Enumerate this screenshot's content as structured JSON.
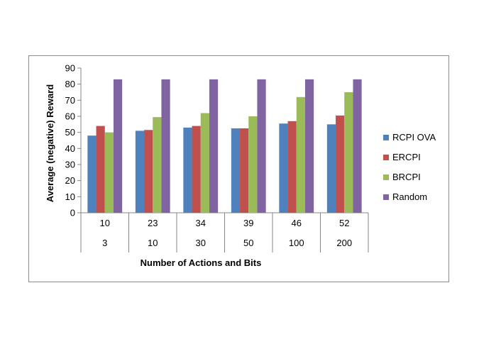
{
  "chart_data": {
    "type": "bar",
    "title": "",
    "xlabel": "Number of Actions and Bits",
    "ylabel": "Average (negative) Reward",
    "ylim": [
      0,
      90
    ],
    "yticks": [
      0,
      10,
      20,
      30,
      40,
      50,
      60,
      70,
      80,
      90
    ],
    "grid": false,
    "legend_position": "right",
    "categories": [
      {
        "actions": "10",
        "bits": "3"
      },
      {
        "actions": "23",
        "bits": "10"
      },
      {
        "actions": "34",
        "bits": "30"
      },
      {
        "actions": "39",
        "bits": "50"
      },
      {
        "actions": "46",
        "bits": "100"
      },
      {
        "actions": "52",
        "bits": "200"
      }
    ],
    "series": [
      {
        "name": "RCPI OVA",
        "color": "#4f81bd",
        "values": [
          48,
          51,
          53,
          52.5,
          55.5,
          55
        ]
      },
      {
        "name": "ERCPI",
        "color": "#c0504d",
        "values": [
          54,
          51.5,
          54,
          52.5,
          57,
          60.5
        ]
      },
      {
        "name": "BRCPI",
        "color": "#9bbb59",
        "values": [
          50,
          59.5,
          62,
          60,
          72,
          75
        ]
      },
      {
        "name": "Random",
        "color": "#8064a2",
        "values": [
          83,
          83,
          83,
          83,
          83,
          83
        ]
      }
    ]
  }
}
